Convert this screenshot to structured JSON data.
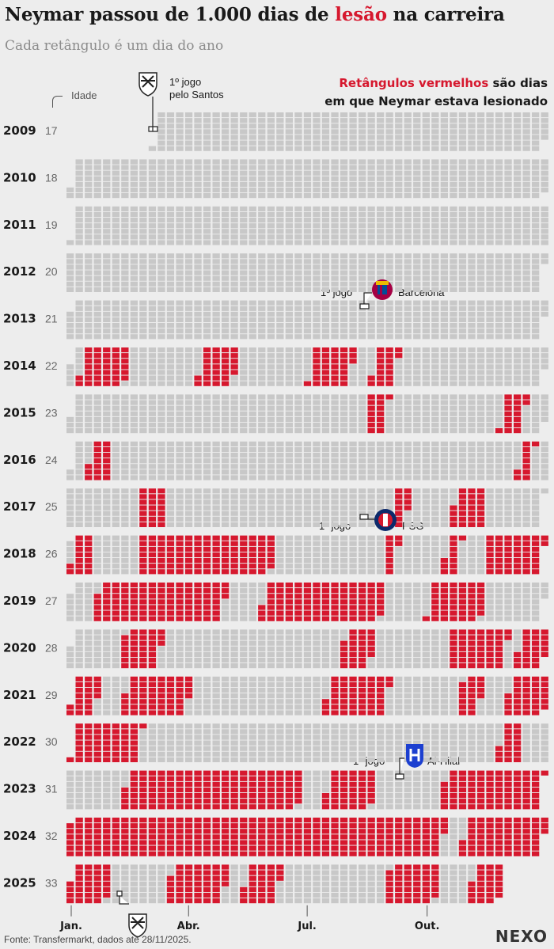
{
  "header": {
    "title_before": "Neymar passou de 1.000 dias de ",
    "title_highlight": "lesão",
    "title_after": " na carreira",
    "subtitle": "Cada retângulo é um dia do ano"
  },
  "legend": {
    "line1_red": "Retângulos vermelhos",
    "line1_rest": " são dias",
    "line2": "em que Neymar estava lesionado"
  },
  "age_label": "Idade",
  "annotations": {
    "santos_debut_l1": "1º jogo",
    "santos_debut_l2": "pelo Santos",
    "barcelona_l1": "1º jogo",
    "barcelona_l2": "Barcelona",
    "psg_l1": "1º jogo",
    "psg_l2": "PSG",
    "alhilal_l1": "1º jogo",
    "alhilal_l2": "Al-Hilal"
  },
  "footer": {
    "source": "Fonte: Transfermarkt, dados até 28/11/2025.",
    "brand": "NEXO"
  },
  "colors": {
    "injured": "#d6182e",
    "healthy": "#c8c8c8",
    "background": "#ededed"
  },
  "icons": [
    "santos-crest-icon",
    "barcelona-crest-icon",
    "psg-crest-icon",
    "al-hilal-crest-icon"
  ],
  "chart_data": {
    "type": "heatmap",
    "x_tick_labels": [
      "Jan.",
      "Abr.",
      "Jul.",
      "Out."
    ],
    "data_through": "2025-11-28",
    "rows": [
      {
        "year": "2009",
        "age": "17",
        "start": "2009-03-07",
        "injuries": []
      },
      {
        "year": "2010",
        "age": "18",
        "injuries": []
      },
      {
        "year": "2011",
        "age": "19",
        "injuries": []
      },
      {
        "year": "2012",
        "age": "20",
        "injuries": []
      },
      {
        "year": "2013",
        "age": "21",
        "injuries": []
      },
      {
        "year": "2014",
        "age": "22",
        "injuries": [
          [
            "01-10",
            "02-14"
          ],
          [
            "04-11",
            "05-08"
          ],
          [
            "07-05",
            "08-05"
          ],
          [
            "08-22",
            "09-08"
          ]
        ]
      },
      {
        "year": "2015",
        "age": "23",
        "injuries": [
          [
            "08-16",
            "08-30"
          ],
          [
            "11-28",
            "12-14"
          ]
        ]
      },
      {
        "year": "2016",
        "age": "24",
        "injuries": [
          [
            "01-14",
            "01-30"
          ],
          [
            "12-09",
            "12-18"
          ]
        ]
      },
      {
        "year": "2017",
        "age": "25",
        "injuries": [
          [
            "02-26",
            "03-18"
          ],
          [
            "09-10",
            "09-20"
          ],
          [
            "10-25",
            "11-18"
          ]
        ]
      },
      {
        "year": "2018",
        "age": "26",
        "injuries": [
          [
            "01-05",
            "01-20"
          ],
          [
            "02-25",
            "06-08"
          ],
          [
            "09-02",
            "09-10"
          ],
          [
            "10-18",
            "10-28"
          ],
          [
            "11-18",
            "12-31"
          ]
        ]
      },
      {
        "year": "2019",
        "age": "27",
        "injuries": [
          [
            "01-22",
            "04-30"
          ],
          [
            "05-30",
            "08-30"
          ],
          [
            "10-05",
            "11-15"
          ]
        ]
      },
      {
        "year": "2020",
        "age": "28",
        "injuries": [
          [
            "02-10",
            "03-10"
          ],
          [
            "07-28",
            "08-20"
          ],
          [
            "10-18",
            "11-30"
          ],
          [
            "12-10",
            "12-31"
          ]
        ]
      },
      {
        "year": "2021",
        "age": "29",
        "injuries": [
          [
            "01-01",
            "01-20"
          ],
          [
            "02-10",
            "03-31"
          ],
          [
            "07-15",
            "08-30"
          ],
          [
            "10-25",
            "11-10"
          ],
          [
            "12-01",
            "12-31"
          ]
        ]
      },
      {
        "year": "2022",
        "age": "30",
        "injuries": [
          [
            "01-01",
            "02-20"
          ],
          [
            "11-24",
            "12-10"
          ]
        ]
      },
      {
        "year": "2023",
        "age": "31",
        "injuries": [
          [
            "02-15",
            "06-30"
          ],
          [
            "07-20",
            "08-25"
          ],
          [
            "10-17",
            "12-31"
          ]
        ]
      },
      {
        "year": "2024",
        "age": "32",
        "injuries": [
          [
            "01-01",
            "10-15"
          ],
          [
            "10-31",
            "12-31"
          ]
        ]
      },
      {
        "year": "2025",
        "age": "33",
        "injuries": [
          [
            "01-01",
            "01-31"
          ],
          [
            "03-18",
            "04-30"
          ],
          [
            "05-15",
            "06-10"
          ],
          [
            "09-01",
            "10-10"
          ],
          [
            "11-05",
            "11-28"
          ]
        ]
      }
    ]
  }
}
